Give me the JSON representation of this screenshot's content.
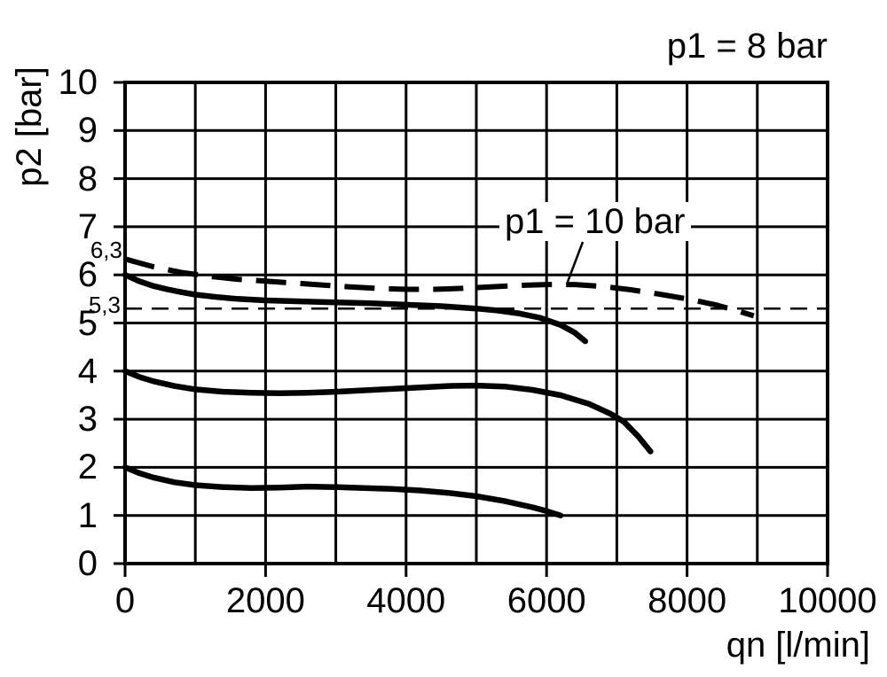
{
  "annotations": {
    "p1_8_label": "p1 = 8 bar",
    "p1_10_label": "p1 = 10 bar"
  },
  "axes": {
    "y_title": "p2 [bar]",
    "x_title": "qn [l/min]",
    "x_ticks": [
      {
        "value": 0,
        "label": "0"
      },
      {
        "value": 2000,
        "label": "2000"
      },
      {
        "value": 4000,
        "label": "4000"
      },
      {
        "value": 6000,
        "label": "6000"
      },
      {
        "value": 8000,
        "label": "8000"
      },
      {
        "value": 10000,
        "label": "10000"
      }
    ],
    "y_ticks": [
      {
        "value": 0,
        "label": "0"
      },
      {
        "value": 1,
        "label": "1"
      },
      {
        "value": 2,
        "label": "2"
      },
      {
        "value": 3,
        "label": "3"
      },
      {
        "value": 4,
        "label": "4"
      },
      {
        "value": 5,
        "label": "5"
      },
      {
        "value": 6,
        "label": "6"
      },
      {
        "value": 7,
        "label": "7"
      },
      {
        "value": 8,
        "label": "8"
      },
      {
        "value": 9,
        "label": "9"
      },
      {
        "value": 10,
        "label": "10"
      }
    ],
    "y_special_labels": [
      {
        "label": "6,3",
        "value": 6.3
      },
      {
        "label": "5,3",
        "value": 5.3
      }
    ]
  },
  "chart_data": {
    "type": "line",
    "title": "",
    "xlabel": "qn [l/min]",
    "ylabel": "p2 [bar]",
    "xlim": [
      0,
      10000
    ],
    "ylim": [
      0,
      10
    ],
    "x_grid_step": 1000,
    "y_grid_step": 1,
    "x_tick_step": 2000,
    "y_tick_step": 1,
    "grid": true,
    "legend": "none",
    "annotation_texts": [
      "p1 = 8 bar",
      "p1 = 10 bar"
    ],
    "series": [
      {
        "id": "p1-10-bar-dashed",
        "annotation": "p1 = 10 bar",
        "style": "bold-dashed",
        "points": [
          [
            0,
            6.33
          ],
          [
            400,
            6.17
          ],
          [
            800,
            6.05
          ],
          [
            1200,
            5.97
          ],
          [
            1600,
            5.91
          ],
          [
            2000,
            5.87
          ],
          [
            2400,
            5.83
          ],
          [
            2800,
            5.79
          ],
          [
            3200,
            5.75
          ],
          [
            3600,
            5.72
          ],
          [
            4000,
            5.7
          ],
          [
            4400,
            5.7
          ],
          [
            4800,
            5.72
          ],
          [
            5200,
            5.75
          ],
          [
            5600,
            5.78
          ],
          [
            6000,
            5.8
          ],
          [
            6400,
            5.8
          ],
          [
            6800,
            5.76
          ],
          [
            7200,
            5.69
          ],
          [
            7600,
            5.6
          ],
          [
            8000,
            5.5
          ],
          [
            8400,
            5.38
          ],
          [
            8700,
            5.26
          ],
          [
            8950,
            5.15
          ]
        ]
      },
      {
        "id": "solid-upper",
        "annotation": "p1 = 8 bar",
        "style": "solid",
        "points": [
          [
            0,
            6.0
          ],
          [
            200,
            5.87
          ],
          [
            400,
            5.77
          ],
          [
            600,
            5.7
          ],
          [
            800,
            5.64
          ],
          [
            1000,
            5.59
          ],
          [
            1300,
            5.54
          ],
          [
            1600,
            5.5
          ],
          [
            2000,
            5.47
          ],
          [
            2500,
            5.45
          ],
          [
            3000,
            5.43
          ],
          [
            3500,
            5.41
          ],
          [
            4000,
            5.38
          ],
          [
            4500,
            5.35
          ],
          [
            5000,
            5.3
          ],
          [
            5300,
            5.26
          ],
          [
            5600,
            5.2
          ],
          [
            5900,
            5.11
          ],
          [
            6200,
            4.96
          ],
          [
            6400,
            4.8
          ],
          [
            6550,
            4.62
          ]
        ]
      },
      {
        "id": "solid-middle",
        "annotation": "p1 = 8 bar",
        "style": "solid",
        "points": [
          [
            0,
            4.0
          ],
          [
            200,
            3.88
          ],
          [
            400,
            3.79
          ],
          [
            700,
            3.69
          ],
          [
            1000,
            3.62
          ],
          [
            1400,
            3.57
          ],
          [
            1800,
            3.55
          ],
          [
            2200,
            3.54
          ],
          [
            2600,
            3.55
          ],
          [
            3000,
            3.57
          ],
          [
            3400,
            3.6
          ],
          [
            3800,
            3.63
          ],
          [
            4200,
            3.66
          ],
          [
            4600,
            3.69
          ],
          [
            5000,
            3.7
          ],
          [
            5400,
            3.68
          ],
          [
            5800,
            3.61
          ],
          [
            6200,
            3.5
          ],
          [
            6600,
            3.32
          ],
          [
            6900,
            3.12
          ],
          [
            7100,
            2.95
          ],
          [
            7300,
            2.65
          ],
          [
            7480,
            2.33
          ]
        ]
      },
      {
        "id": "solid-lower",
        "annotation": "p1 = 8 bar",
        "style": "solid",
        "points": [
          [
            0,
            2.0
          ],
          [
            200,
            1.88
          ],
          [
            400,
            1.79
          ],
          [
            700,
            1.69
          ],
          [
            1000,
            1.63
          ],
          [
            1400,
            1.59
          ],
          [
            1800,
            1.57
          ],
          [
            2200,
            1.58
          ],
          [
            2600,
            1.6
          ],
          [
            3000,
            1.59
          ],
          [
            3400,
            1.57
          ],
          [
            3800,
            1.55
          ],
          [
            4200,
            1.52
          ],
          [
            4600,
            1.47
          ],
          [
            5000,
            1.4
          ],
          [
            5400,
            1.3
          ],
          [
            5800,
            1.17
          ],
          [
            6000,
            1.09
          ],
          [
            6200,
            1.0
          ]
        ]
      },
      {
        "id": "reference-5-3",
        "annotation": "5,3",
        "style": "thin-dashed",
        "points": [
          [
            0,
            5.3
          ],
          [
            10000,
            5.3
          ]
        ]
      }
    ]
  }
}
